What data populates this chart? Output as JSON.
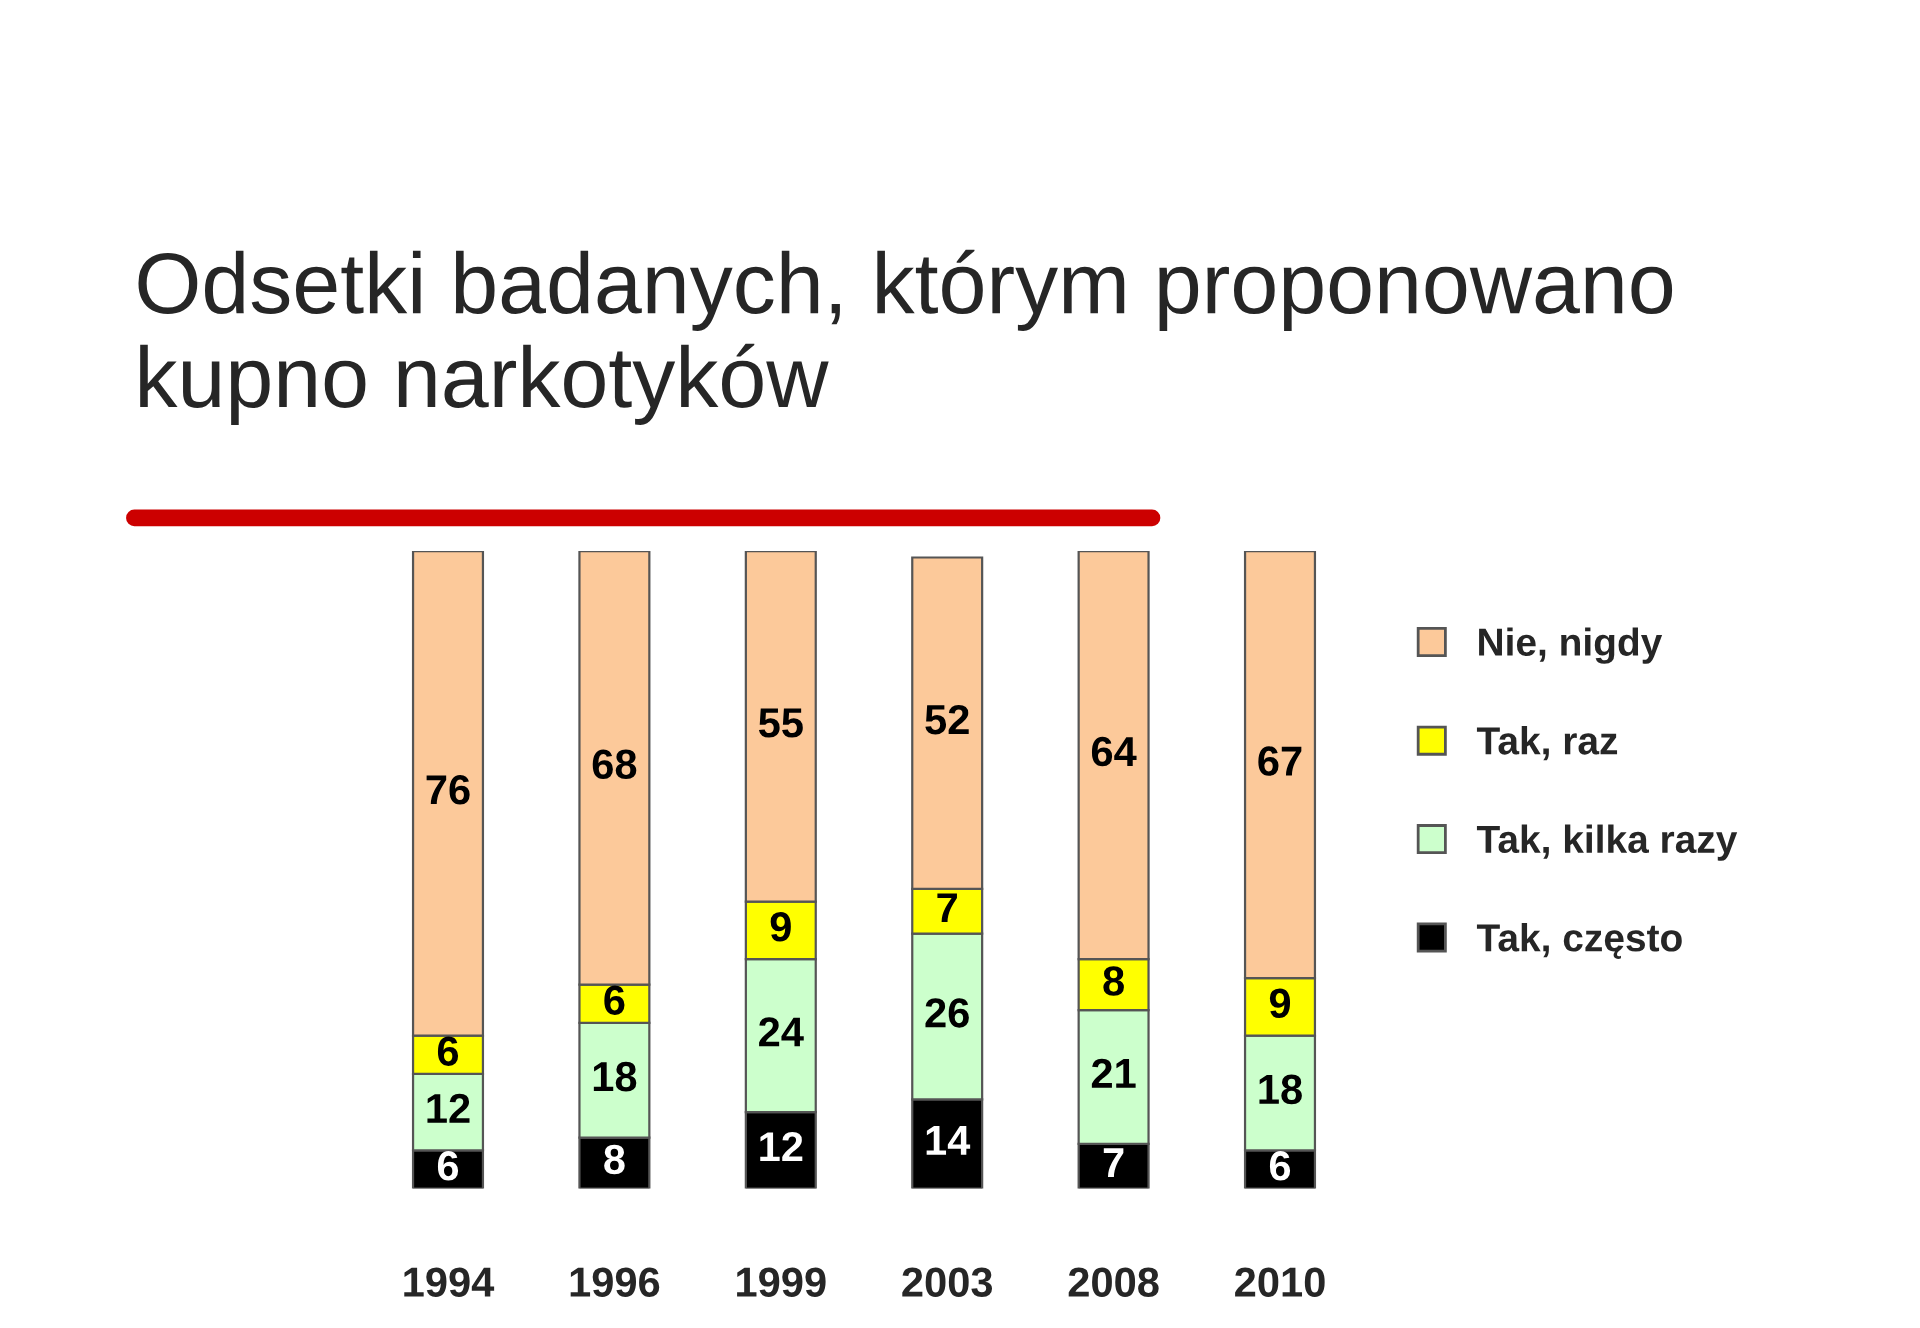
{
  "chart_data": {
    "type": "bar",
    "stacked": true,
    "title": "Odsetki badanych, którym proponowano kupno narkotyków",
    "categories": [
      "1994",
      "1996",
      "1999",
      "2003",
      "2008",
      "2010"
    ],
    "series": [
      {
        "name": "Tak, często",
        "color": "#000000",
        "values": [
          6,
          8,
          12,
          14,
          7,
          6
        ]
      },
      {
        "name": "Tak, kilka razy",
        "color": "#ccffcc",
        "values": [
          12,
          18,
          24,
          26,
          21,
          18
        ]
      },
      {
        "name": "Tak, raz",
        "color": "#ffff00",
        "values": [
          6,
          6,
          9,
          7,
          8,
          9
        ]
      },
      {
        "name": "Nie, nigdy",
        "color": "#fcc99a",
        "values": [
          76,
          68,
          55,
          52,
          64,
          67
        ]
      }
    ],
    "ylim": [
      0,
      100
    ],
    "tick_labels": "x",
    "data_labels": true,
    "legend": "right",
    "grid": false
  }
}
